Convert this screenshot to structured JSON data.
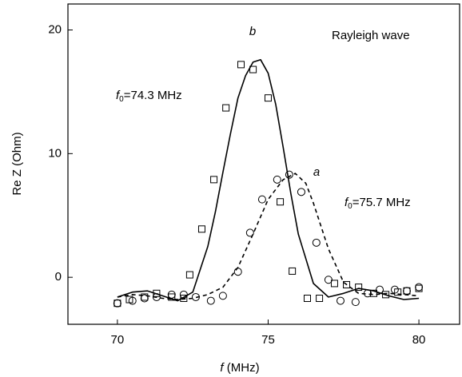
{
  "chart_data": {
    "type": "scatter",
    "xlabel": [
      "f",
      " (MHz)"
    ],
    "ylabel": "Re Z (Ohm)",
    "xlim": [
      68.36,
      81.35
    ],
    "ylim": [
      -3.8,
      22.1
    ],
    "xticks": [
      70,
      75,
      80
    ],
    "yticks": [
      0,
      10,
      20
    ],
    "annotations": [
      [
        "b"
      ],
      [
        "a"
      ],
      [
        "Rayleigh wave"
      ],
      [
        "f",
        "0",
        "=74.3 MHz"
      ],
      [
        "f",
        "0",
        "=75.7 MHz"
      ]
    ],
    "series": [
      {
        "style": "square",
        "color": "#000000",
        "x": [
          70.0,
          70.4,
          70.9,
          71.3,
          71.8,
          72.2,
          72.4,
          72.8,
          73.2,
          73.6,
          74.1,
          74.5,
          75.0,
          75.4,
          75.8,
          76.3,
          76.7,
          77.2,
          77.6,
          78.0,
          78.5,
          78.9,
          79.3,
          79.6,
          80.0
        ],
        "values": [
          -2.1,
          -1.8,
          -1.6,
          -1.3,
          -1.6,
          -1.7,
          0.2,
          3.9,
          7.9,
          13.7,
          17.2,
          16.8,
          14.5,
          6.1,
          0.5,
          -1.7,
          -1.7,
          -0.5,
          -0.6,
          -0.8,
          -1.3,
          -1.4,
          -1.2,
          -1.1,
          -0.9
        ]
      },
      {
        "style": "circle",
        "color": "#000000",
        "x": [
          70.0,
          70.5,
          70.9,
          71.3,
          71.8,
          72.2,
          72.6,
          73.1,
          73.5,
          74.0,
          74.4,
          74.8,
          75.3,
          75.7,
          76.1,
          76.6,
          77.0,
          77.4,
          77.9,
          78.3,
          78.7,
          79.2,
          79.6,
          80.0
        ],
        "values": [
          -2.1,
          -1.9,
          -1.7,
          -1.6,
          -1.4,
          -1.4,
          -1.6,
          -1.9,
          -1.5,
          0.45,
          3.6,
          6.3,
          7.9,
          8.3,
          6.9,
          2.8,
          -0.2,
          -1.9,
          -2.0,
          -1.3,
          -1.0,
          -1.0,
          -1.1,
          -0.8
        ]
      },
      {
        "style": "solid",
        "color": "#000000",
        "x": [
          70,
          70.5,
          71,
          71.5,
          72,
          72.5,
          73,
          73.25,
          73.5,
          73.75,
          74,
          74.25,
          74.5,
          74.75,
          75,
          75.25,
          75.5,
          75.75,
          76,
          76.5,
          77,
          77.5,
          78,
          78.5,
          79,
          79.5,
          80
        ],
        "values": [
          -1.6,
          -1.2,
          -1.1,
          -1.5,
          -1.9,
          -1.2,
          2.5,
          5.3,
          8.5,
          11.6,
          14.5,
          16.3,
          17.4,
          17.6,
          16.5,
          14.0,
          10.5,
          6.8,
          3.5,
          -0.5,
          -1.6,
          -1.3,
          -0.9,
          -1.1,
          -1.5,
          -1.8,
          -1.7
        ]
      },
      {
        "style": "dashed",
        "color": "#000000",
        "x": [
          70,
          70.5,
          71,
          71.5,
          72,
          72.5,
          73,
          73.5,
          74,
          74.5,
          75,
          75.5,
          75.9,
          76.25,
          76.5,
          77,
          77.5,
          78,
          78.5,
          79,
          79.5,
          80
        ],
        "values": [
          -1.6,
          -1.4,
          -1.5,
          -1.7,
          -1.8,
          -1.7,
          -1.4,
          -0.8,
          0.8,
          3.5,
          6.3,
          7.9,
          8.4,
          7.6,
          6.0,
          2.3,
          -0.4,
          -1.3,
          -1.4,
          -1.3,
          -1.4,
          -1.5
        ]
      }
    ]
  }
}
